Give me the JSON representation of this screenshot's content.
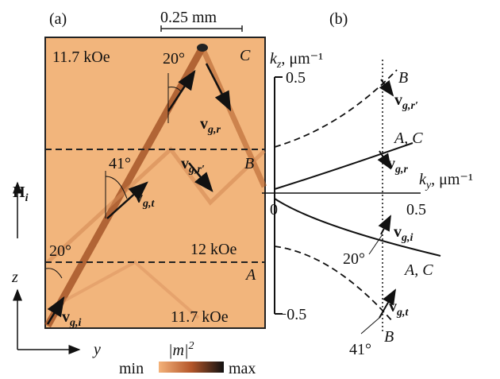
{
  "panel_a": {
    "label": "(a)",
    "scale_bar": "0.25 mm",
    "field_top": "11.7 kOe",
    "field_middle": "12 kOe",
    "field_bottom": "11.7 kOe",
    "region_c": "C",
    "region_b": "B",
    "region_a": "A",
    "angle_top": "20°",
    "angle_middle": "41°",
    "angle_bottom": "20°",
    "v_r": {
      "main": "v",
      "sub": "g,r"
    },
    "v_r_prime": {
      "main": "v",
      "sub": "g,r′"
    },
    "v_t": {
      "main": "v",
      "sub": "g,t"
    },
    "v_i": {
      "main": "v",
      "sub": "g,i"
    },
    "h_axis": {
      "main": "H",
      "sub": "i"
    },
    "z_axis": "z",
    "y_axis": "y",
    "colorbar": {
      "title": "|m|",
      "power": "2",
      "min": "min",
      "max": "max"
    }
  },
  "panel_b": {
    "label": "(b)",
    "kz_axis": {
      "main": "k",
      "sub": "z",
      "unit": ", μm⁻¹"
    },
    "ky_axis": {
      "main": "k",
      "sub": "y",
      "unit": ", μm⁻¹"
    },
    "kz_top": "0.5",
    "kz_bottom": "−0.5",
    "origin": "0",
    "ky_right": "0.5",
    "curve_b_top": "B",
    "curve_ac_top": "A, C",
    "curve_ac_bottom": "A, C",
    "curve_b_bottom": "B",
    "v_r_prime": {
      "main": "v",
      "sub": "g,r′"
    },
    "v_r": {
      "main": "v",
      "sub": "g,r"
    },
    "v_i": {
      "main": "v",
      "sub": "g,i"
    },
    "v_t": {
      "main": "v",
      "sub": "g,t"
    },
    "angle_small": "20°",
    "angle_large": "41°"
  }
}
